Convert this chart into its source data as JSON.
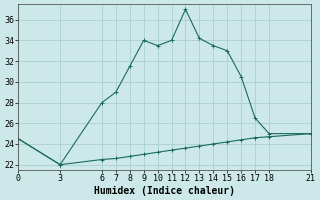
{
  "xlabel": "Humidex (Indice chaleur)",
  "background_color": "#cce8e8",
  "line_color": "#1a6b5a",
  "grid_color": "#aacfcf",
  "x_main": [
    0,
    3,
    6,
    7,
    8,
    9,
    10,
    11,
    12,
    13,
    14,
    15,
    16,
    17,
    18,
    21
  ],
  "y_main": [
    24.5,
    22.0,
    28.0,
    29.0,
    31.5,
    34.0,
    33.5,
    34.0,
    37.0,
    34.2,
    33.5,
    33.0,
    30.5,
    26.5,
    25.0,
    25.0
  ],
  "x_secondary": [
    0,
    3,
    6,
    7,
    8,
    9,
    10,
    11,
    12,
    13,
    14,
    15,
    16,
    17,
    18,
    21
  ],
  "y_secondary": [
    24.5,
    22.0,
    22.5,
    22.6,
    22.8,
    23.0,
    23.2,
    23.4,
    23.6,
    23.8,
    24.0,
    24.2,
    24.4,
    24.6,
    24.7,
    25.0
  ],
  "xlim": [
    0,
    21
  ],
  "ylim": [
    21.5,
    37.5
  ],
  "xticks": [
    0,
    3,
    6,
    7,
    8,
    9,
    10,
    11,
    12,
    13,
    14,
    15,
    16,
    17,
    18,
    21
  ],
  "yticks": [
    22,
    24,
    26,
    28,
    30,
    32,
    34,
    36
  ],
  "axis_fontsize": 7,
  "tick_fontsize": 6
}
